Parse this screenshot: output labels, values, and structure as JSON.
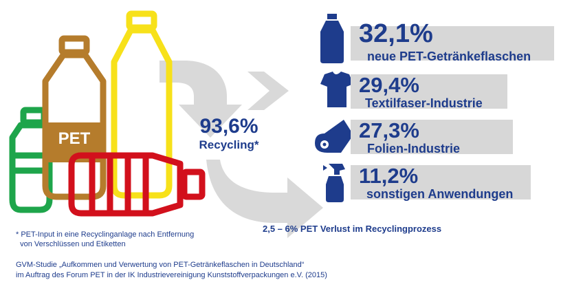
{
  "center": {
    "value": "93,6%",
    "label": "Recycling*"
  },
  "bottle_label": "PET",
  "rows": [
    {
      "value": "32,1%",
      "label": "neue PET-Getränkeflaschen",
      "icon": "bottle-icon"
    },
    {
      "value": "29,4%",
      "label": "Textilfaser-Industrie",
      "icon": "tshirt-icon"
    },
    {
      "value": "27,3%",
      "label": "Folien-Industrie",
      "icon": "film-roll-icon"
    },
    {
      "value": "11,2%",
      "label": "sonstigen Anwendungen",
      "icon": "spray-bottle-icon"
    }
  ],
  "loss_note": "2,5 – 6% PET Verlust im Recyclingprozess",
  "footnote_lines": [
    "* PET-Input in eine Recyclinganlage nach Entfernung",
    "  von Verschlüssen und Etiketten"
  ],
  "source_lines": [
    "GVM-Studie „Aufkommen und Verwertung von PET-Getränkeflaschen in Deutschland“",
    "im Auftrag des Forum PET in der IK Industrievereinigung Kunststoffverpackungen e.V. (2015)"
  ],
  "colors": {
    "brand_blue": "#1e3c8c",
    "bar_gray": "#d7d7d7",
    "arrow_gray": "#d9d9d9",
    "bottle_green": "#1ea54b",
    "bottle_brown": "#b57c2c",
    "bottle_yellow": "#f7e11a",
    "bottle_red": "#d2101c"
  }
}
